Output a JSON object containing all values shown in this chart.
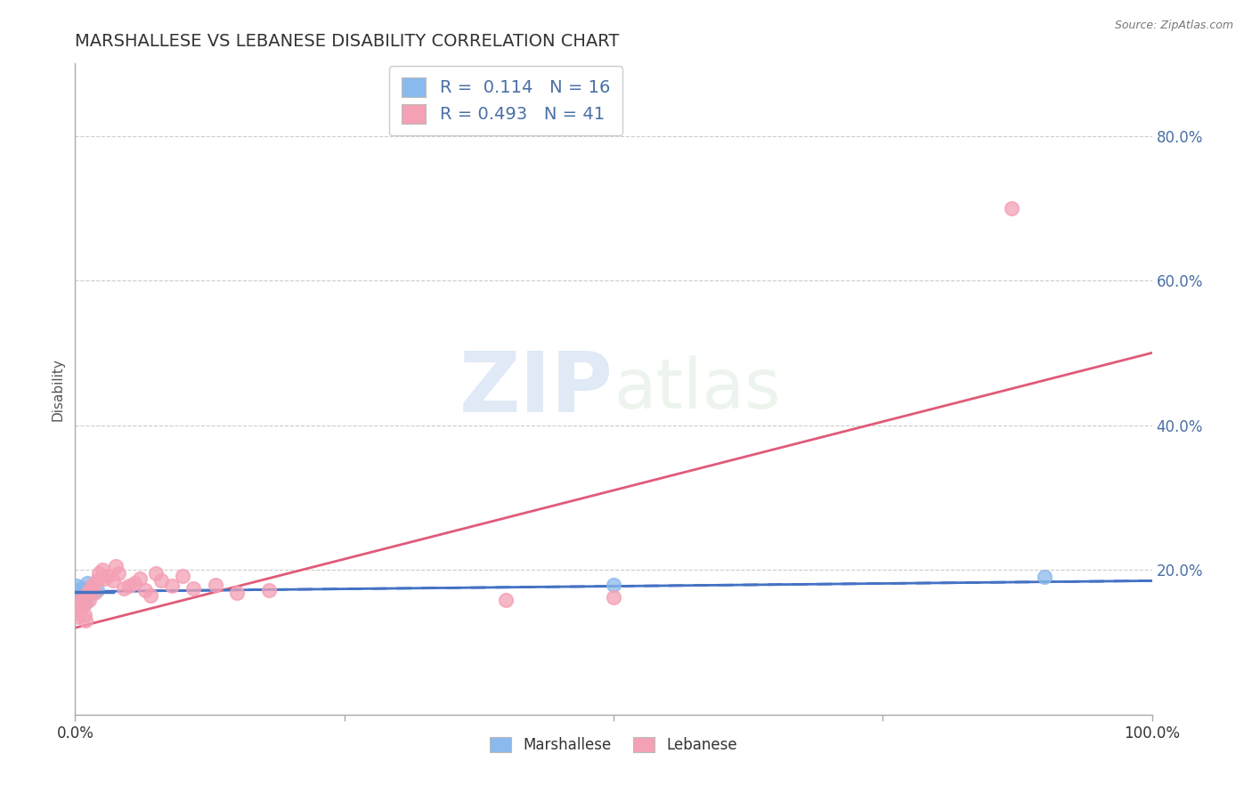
{
  "title": "MARSHALLESE VS LEBANESE DISABILITY CORRELATION CHART",
  "source": "Source: ZipAtlas.com",
  "ylabel": "Disability",
  "xlim": [
    0,
    1.0
  ],
  "ylim": [
    0.0,
    0.9
  ],
  "xticks": [
    0.0,
    0.25,
    0.5,
    0.75,
    1.0
  ],
  "xtick_labels": [
    "0.0%",
    "",
    "",
    "",
    "100.0%"
  ],
  "yticks": [
    0.0,
    0.2,
    0.4,
    0.6,
    0.8
  ],
  "ytick_right_labels": [
    "",
    "20.0%",
    "40.0%",
    "60.0%",
    "80.0%"
  ],
  "marshallese_color": "#8ab9ed",
  "lebanese_color": "#f4a0b5",
  "marshallese_line_color": "#4472c4",
  "lebanese_line_color": "#e05a7a",
  "marshallese_R": 0.114,
  "marshallese_N": 16,
  "lebanese_R": 0.493,
  "lebanese_N": 41,
  "background_color": "#ffffff",
  "grid_color": "#cccccc",
  "title_color": "#333333",
  "axis_label_color": "#4a6fa5",
  "legend_R_color": "#4a6fa5",
  "marshallese_scatter": [
    [
      0.001,
      0.178
    ],
    [
      0.002,
      0.172
    ],
    [
      0.003,
      0.165
    ],
    [
      0.004,
      0.168
    ],
    [
      0.005,
      0.162
    ],
    [
      0.006,
      0.175
    ],
    [
      0.007,
      0.158
    ],
    [
      0.008,
      0.17
    ],
    [
      0.009,
      0.163
    ],
    [
      0.01,
      0.155
    ],
    [
      0.011,
      0.182
    ],
    [
      0.013,
      0.175
    ],
    [
      0.015,
      0.168
    ],
    [
      0.02,
      0.172
    ],
    [
      0.5,
      0.18
    ],
    [
      0.9,
      0.19
    ]
  ],
  "lebanese_scatter": [
    [
      0.001,
      0.148
    ],
    [
      0.002,
      0.14
    ],
    [
      0.003,
      0.135
    ],
    [
      0.004,
      0.155
    ],
    [
      0.005,
      0.145
    ],
    [
      0.006,
      0.158
    ],
    [
      0.007,
      0.162
    ],
    [
      0.008,
      0.152
    ],
    [
      0.009,
      0.138
    ],
    [
      0.01,
      0.13
    ],
    [
      0.011,
      0.165
    ],
    [
      0.012,
      0.17
    ],
    [
      0.013,
      0.158
    ],
    [
      0.015,
      0.175
    ],
    [
      0.016,
      0.18
    ],
    [
      0.018,
      0.168
    ],
    [
      0.02,
      0.185
    ],
    [
      0.022,
      0.195
    ],
    [
      0.025,
      0.2
    ],
    [
      0.027,
      0.188
    ],
    [
      0.03,
      0.192
    ],
    [
      0.035,
      0.185
    ],
    [
      0.038,
      0.205
    ],
    [
      0.04,
      0.195
    ],
    [
      0.045,
      0.175
    ],
    [
      0.05,
      0.178
    ],
    [
      0.055,
      0.182
    ],
    [
      0.06,
      0.188
    ],
    [
      0.065,
      0.172
    ],
    [
      0.07,
      0.165
    ],
    [
      0.075,
      0.195
    ],
    [
      0.08,
      0.185
    ],
    [
      0.09,
      0.178
    ],
    [
      0.1,
      0.192
    ],
    [
      0.11,
      0.175
    ],
    [
      0.13,
      0.18
    ],
    [
      0.15,
      0.168
    ],
    [
      0.18,
      0.172
    ],
    [
      0.4,
      0.158
    ],
    [
      0.5,
      0.162
    ],
    [
      0.87,
      0.7
    ]
  ],
  "marshallese_trendline": [
    [
      0.0,
      0.17
    ],
    [
      1.0,
      0.185
    ]
  ],
  "lebanese_trendline": [
    [
      0.0,
      0.12
    ],
    [
      1.0,
      0.5
    ]
  ]
}
